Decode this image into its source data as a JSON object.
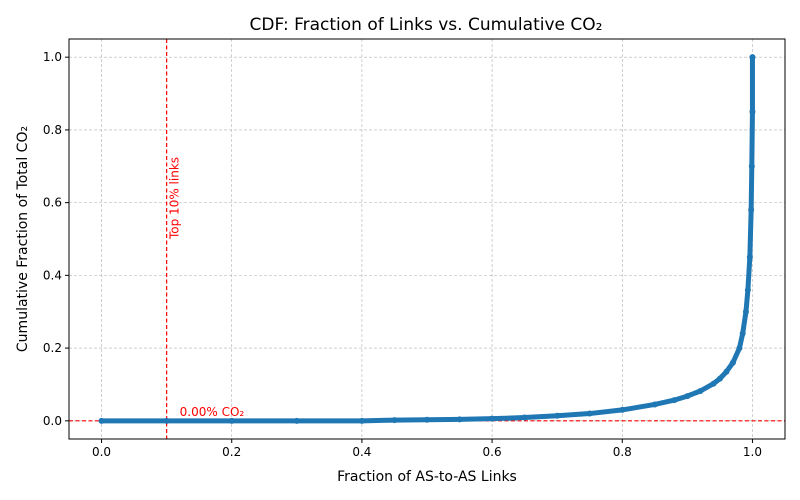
{
  "chart_data": {
    "type": "scatter",
    "title": "CDF: Fraction of Links vs. Cumulative CO₂",
    "xlabel": "Fraction of AS-to-AS Links",
    "ylabel": "Cumulative Fraction of Total CO₂",
    "xlim": [
      -0.05,
      1.05
    ],
    "ylim": [
      -0.05,
      1.05
    ],
    "xticks": [
      0.0,
      0.2,
      0.4,
      0.6,
      0.8,
      1.0
    ],
    "yticks": [
      0.0,
      0.2,
      0.4,
      0.6,
      0.8,
      1.0
    ],
    "xtick_labels": [
      "0.0",
      "0.2",
      "0.4",
      "0.6",
      "0.8",
      "1.0"
    ],
    "ytick_labels": [
      "0.0",
      "0.2",
      "0.4",
      "0.6",
      "0.8",
      "1.0"
    ],
    "grid": true,
    "series": [
      {
        "color": "#1f77b4",
        "x": [
          0.0,
          0.1,
          0.2,
          0.3,
          0.4,
          0.45,
          0.5,
          0.55,
          0.6,
          0.65,
          0.7,
          0.75,
          0.8,
          0.85,
          0.88,
          0.9,
          0.92,
          0.94,
          0.95,
          0.96,
          0.97,
          0.98,
          0.985,
          0.99,
          0.993,
          0.996,
          0.998,
          0.999,
          1.0,
          1.0
        ],
        "y": [
          0.0,
          0.0,
          0.0,
          0.0,
          0.0,
          0.002,
          0.003,
          0.004,
          0.006,
          0.009,
          0.014,
          0.02,
          0.03,
          0.045,
          0.057,
          0.068,
          0.082,
          0.102,
          0.116,
          0.135,
          0.16,
          0.2,
          0.24,
          0.3,
          0.36,
          0.45,
          0.58,
          0.7,
          0.85,
          1.0
        ]
      }
    ],
    "reference_lines": [
      {
        "orientation": "vertical",
        "value": 0.1,
        "color": "#ff0000",
        "style": "dashed",
        "label": "Top 10% links"
      },
      {
        "orientation": "horizontal",
        "value": 0.0,
        "color": "#ff0000",
        "style": "dashed",
        "label": "0.00% CO₂"
      }
    ]
  }
}
